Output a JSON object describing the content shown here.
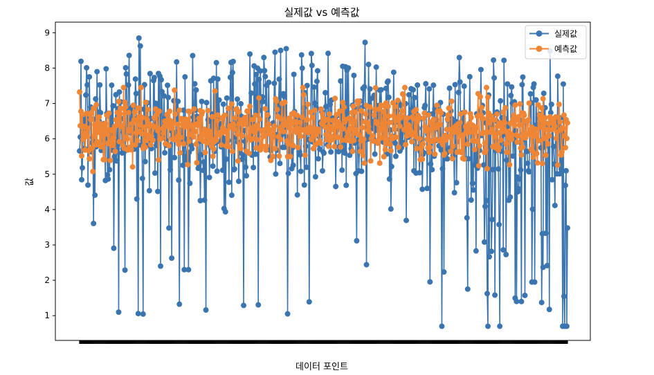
{
  "chart_data": {
    "type": "line",
    "title": "실제값 vs 예측값",
    "xlabel": "데이터 포인트",
    "ylabel": "값",
    "ylim": [
      0.3,
      9.3
    ],
    "yticks": [
      1,
      2,
      3,
      4,
      5,
      6,
      7,
      8,
      9
    ],
    "grid": false,
    "legend_position": "top-right",
    "n_points": 700,
    "series": [
      {
        "name": "실제값",
        "color": "#3b75af",
        "marker": "circle",
        "approx_mean": 6.3,
        "range": [
          0.7,
          8.85
        ],
        "notable_values": [
          8.85,
          8.55,
          8.5,
          8.45,
          8.3,
          8.3,
          1.1,
          0.7,
          0.7,
          0.7,
          0.7,
          0.7,
          0.7,
          2.3,
          2.3,
          1.95,
          1.95,
          1.4
        ]
      },
      {
        "name": "예측값",
        "color": "#ef8636",
        "marker": "circle",
        "approx_mean": 6.3,
        "range": [
          4.9,
          7.45
        ]
      }
    ]
  }
}
